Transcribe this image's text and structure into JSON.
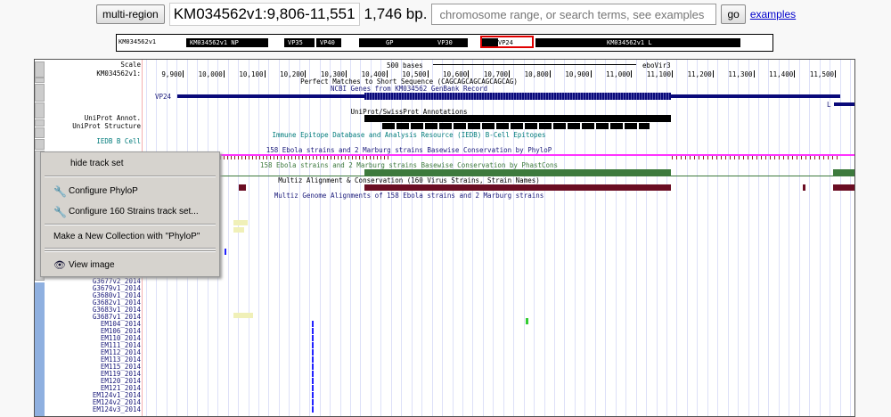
{
  "topbar": {
    "multi_region": "multi-region",
    "position": "KM034562v1:9,806-11,551",
    "size": "1,746 bp.",
    "search_placeholder": "chromosome range, or search terms, see examples",
    "go": "go",
    "examples": "examples"
  },
  "ideogram": {
    "chrom": "KM034562v1",
    "bands": [
      "KM034562v1 NP",
      "VP35",
      "VP40",
      "GP",
      "VP30",
      "VP24",
      "KM034562v1 L"
    ],
    "highlight_color": "#e00000"
  },
  "tracks": {
    "scale_label": "Scale",
    "chrom_label": "KM034562v1:",
    "scale_bar": "500 bases",
    "assembly": "eboVir3",
    "ticks": [
      "9,900",
      "10,000",
      "10,100",
      "10,200",
      "10,300",
      "10,400",
      "10,500",
      "10,600",
      "10,700",
      "10,800",
      "10,900",
      "11,000",
      "11,100",
      "11,200",
      "11,300",
      "11,400",
      "11,500"
    ],
    "perfect_matches": "Perfect Matches to Short Sequence (CAGCAGCAGCAGCAGCAG)",
    "ncbi_genes": "NCBI Genes from KM034562 GenBank Record",
    "gene_vp24": "VP24",
    "gene_l": "L",
    "uniprot_title": "UniProt/SwissProt Annotations",
    "uniprot_annot": "UniProt Annot.",
    "uniprot_structure": "UniProt Structure",
    "iedb_title": "Immune Epitope Database and Analysis Resource (IEDB) B-Cell Epitopes",
    "iedb_label": "IEDB B Cell",
    "phylop_title": "158 Ebola strains and 2 Marburg strains Basewise Conservation by PhyloP",
    "phastcons_title": "158 Ebola strains and 2 Marburg strains Basewise Conservation by PhastCons",
    "multiz_title": "Multiz Alignment & Conservation (160 Virus Strains, Strain Names)",
    "multiz_sub": "Multiz Genome Alignments of 158 Ebola strains and 2 Marburg strains",
    "strains": [
      "G3677v2_2014",
      "G3679v1_2014",
      "G3680v1_2014",
      "G3682v1_2014",
      "G3683v1_2014",
      "G3687v1_2014",
      "EM104_2014",
      "EM106_2014",
      "EM110_2014",
      "EM111_2014",
      "EM112_2014",
      "EM113_2014",
      "EM115_2014",
      "EM119_2014",
      "EM120_2014",
      "EM121_2014",
      "EM124v1_2014",
      "EM124v2_2014",
      "EM124v3_2014"
    ],
    "colors": {
      "gene": "#0a0a7a",
      "phylop": "#ff33ff",
      "phylop_neg": "#8b2222",
      "phastcons": "#3d7a3d",
      "multiz": "#6b0d23",
      "label_blue": "#1a1a7a",
      "label_teal": "#007b7b"
    }
  },
  "menu": {
    "hide": "hide track set",
    "configure_phylop": "Configure PhyloP",
    "configure_strains": "Configure 160 Strains track set...",
    "collection": "Make a New Collection with \"PhyloP\"",
    "view_image": "View image"
  }
}
